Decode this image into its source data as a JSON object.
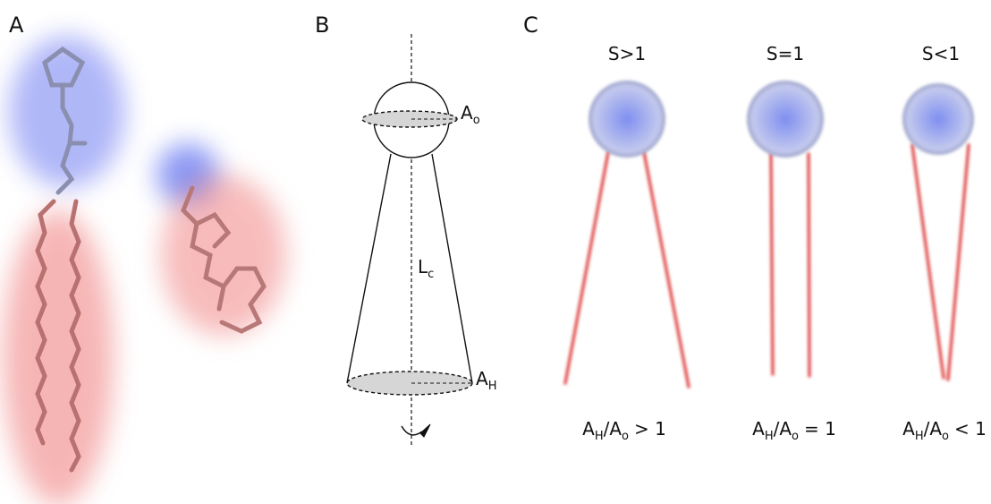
{
  "panels": [
    {
      "label": "A"
    },
    {
      "label": "B",
      "head_area": {
        "base": "A",
        "sub": "o"
      },
      "length": {
        "base": "L",
        "sub": "c"
      },
      "tail_area": {
        "base": "A",
        "sub": "H"
      }
    },
    {
      "label": "C",
      "cases": [
        {
          "title": "S>1",
          "ratio": {
            "left": {
              "base": "A",
              "sub": "H"
            },
            "divider": "/",
            "right": {
              "base": "A",
              "sub": "o"
            },
            "relation": "> 1"
          }
        },
        {
          "title": "S=1",
          "ratio": {
            "left": {
              "base": "A",
              "sub": "H"
            },
            "divider": "/",
            "right": {
              "base": "A",
              "sub": "o"
            },
            "relation": "= 1"
          }
        },
        {
          "title": "S<1",
          "ratio": {
            "left": {
              "base": "A",
              "sub": "H"
            },
            "divider": "/",
            "right": {
              "base": "A",
              "sub": "o"
            },
            "relation": "< 1"
          }
        }
      ]
    }
  ]
}
